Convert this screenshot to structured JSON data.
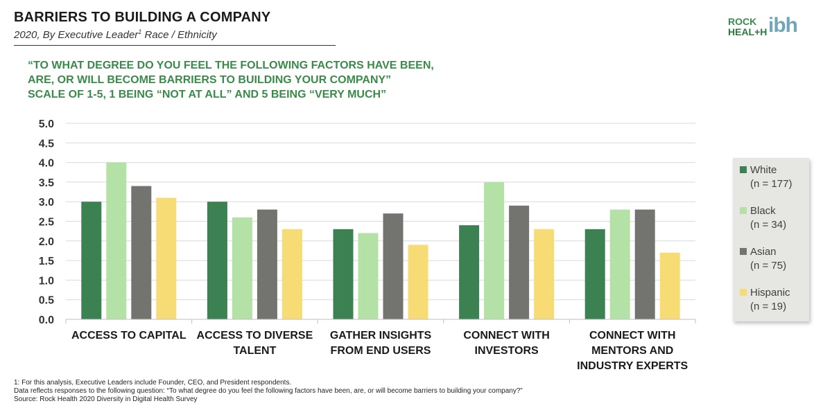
{
  "header": {
    "title": "BARRIERS TO BUILDING A COMPANY",
    "subtitle_main": "2020, By Executive Leader",
    "subtitle_sup": "1",
    "subtitle_rest": " Race / Ethnicity"
  },
  "logo": {
    "line1": "ROCK",
    "line2": "HEAL+H",
    "mark": "ibh"
  },
  "question": {
    "line1": "“TO WHAT DEGREE DO YOU FEEL THE FOLLOWING FACTORS HAVE BEEN,",
    "line2": "ARE, OR WILL BECOME BARRIERS TO BUILDING YOUR COMPANY”",
    "line3": "SCALE OF 1-5, 1 BEING “NOT AT ALL” AND 5 BEING “VERY MUCH”"
  },
  "chart_data": {
    "type": "bar",
    "categories": [
      [
        "ACCESS TO CAPITAL"
      ],
      [
        "ACCESS TO DIVERSE",
        "TALENT"
      ],
      [
        "GATHER INSIGHTS",
        "FROM END USERS"
      ],
      [
        "CONNECT WITH",
        "INVESTORS"
      ],
      [
        "CONNECT WITH",
        "MENTORS AND",
        "INDUSTRY EXPERTS"
      ]
    ],
    "series": [
      {
        "name": "White",
        "n_label": "(n = 177)",
        "color": "#3c8152",
        "values": [
          3.0,
          3.0,
          2.3,
          2.4,
          2.3
        ]
      },
      {
        "name": "Black",
        "n_label": "(n = 34)",
        "color": "#b3e1a6",
        "values": [
          4.0,
          2.6,
          2.2,
          3.5,
          2.8
        ]
      },
      {
        "name": "Asian",
        "n_label": "(n = 75)",
        "color": "#737370",
        "values": [
          3.4,
          2.8,
          2.7,
          2.9,
          2.8
        ]
      },
      {
        "name": "Hispanic",
        "n_label": "(n = 19)",
        "color": "#f7dc76",
        "values": [
          3.1,
          2.3,
          1.9,
          2.3,
          1.7
        ]
      }
    ],
    "ylim": [
      0,
      5
    ],
    "yticks": [
      "0.0",
      "0.5",
      "1.0",
      "1.5",
      "2.0",
      "2.5",
      "3.0",
      "3.5",
      "4.0",
      "4.5",
      "5.0"
    ],
    "grid": true,
    "legend": "right"
  },
  "footer": {
    "note1": "1: For this analysis, Executive Leaders include Founder, CEO, and President respondents.",
    "note2": "Data reflects responses to the following question: “To what degree do you feel the following factors have been, are, or will become barriers to building your company?”",
    "source": "Source: Rock Health 2020 Diversity in Digital Health Survey"
  }
}
